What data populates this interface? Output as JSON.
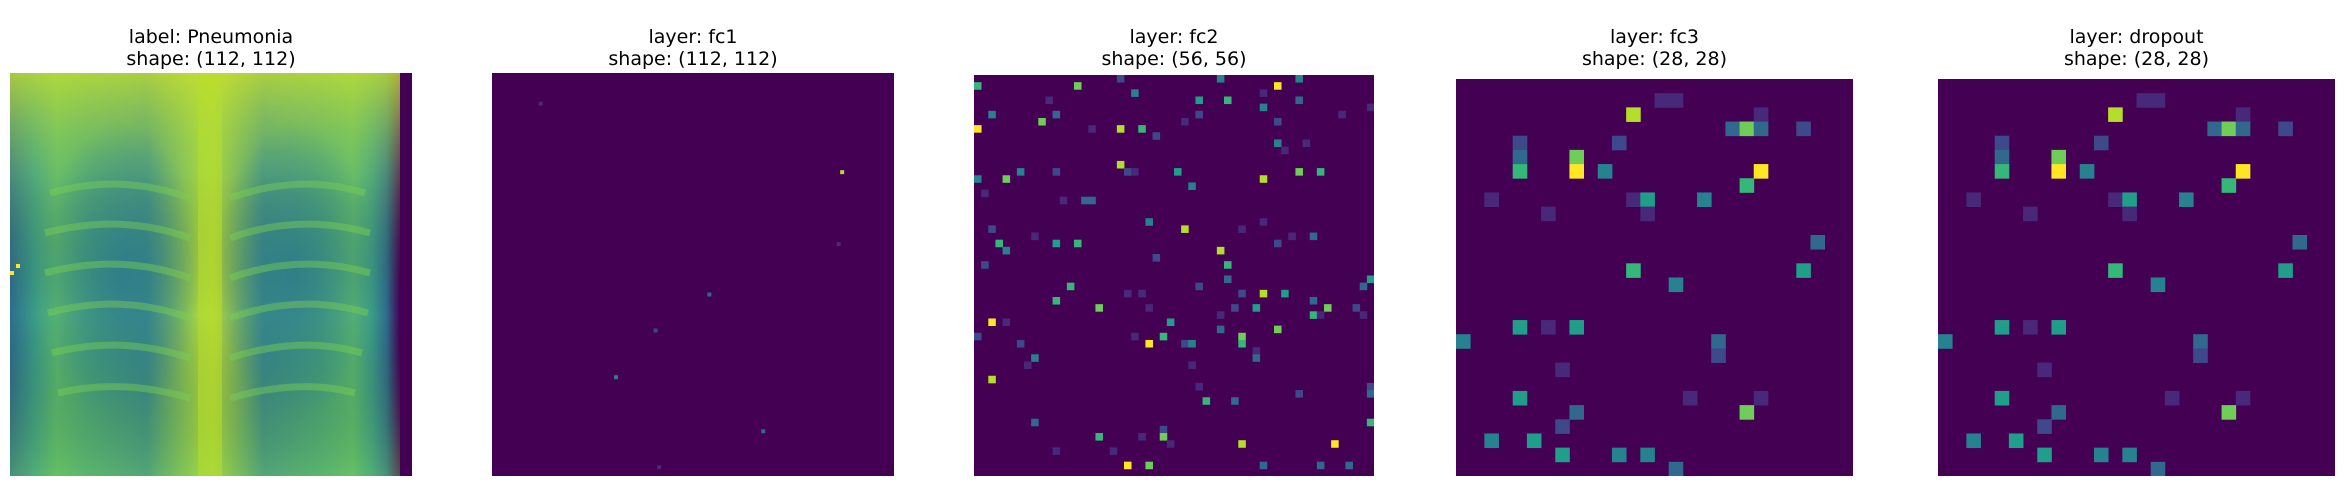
{
  "panels": [
    {
      "line1": "label: Pneumonia",
      "line2": "shape: (112, 112)",
      "kind": "xray",
      "grid": 112
    },
    {
      "line1": "layer: fc1",
      "line2": "shape: (112, 112)",
      "kind": "sparse",
      "grid": 112,
      "seed": 7,
      "density": 0.0006
    },
    {
      "line1": "layer: fc2",
      "line2": "shape: (56, 56)",
      "kind": "sparse",
      "grid": 56,
      "seed": 21,
      "density": 0.045
    },
    {
      "line1": "layer: fc3",
      "line2": "shape: (28, 28)",
      "kind": "sparse",
      "grid": 28,
      "seed": 33,
      "density": 0.075
    },
    {
      "line1": "layer: dropout",
      "line2": "shape: (28, 28)",
      "kind": "sparse",
      "grid": 28,
      "seed": 33,
      "density": 0.075
    }
  ],
  "colormap": "viridis",
  "colors": {
    "background": "#440154",
    "low": "#482878",
    "mid": "#21918c",
    "high": "#5ec962",
    "peak": "#fde725"
  }
}
